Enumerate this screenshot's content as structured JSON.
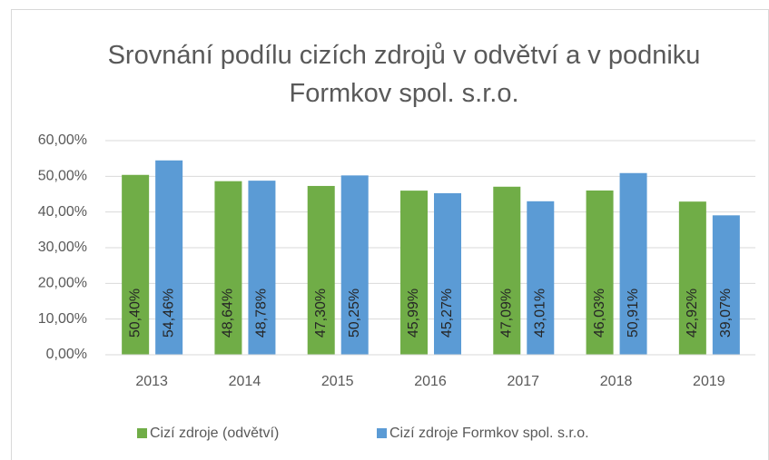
{
  "chart_data": {
    "type": "bar",
    "title": "Srovnání podílu cizích zdrojů v odvětví a v podniku Formkov spol. s.r.o.",
    "categories": [
      "2013",
      "2014",
      "2015",
      "2016",
      "2017",
      "2018",
      "2019"
    ],
    "series": [
      {
        "name": "Cizí zdroje (odvětví)",
        "color": "#70ad47",
        "values": [
          50.4,
          48.64,
          47.3,
          45.99,
          47.09,
          46.03,
          42.92
        ],
        "value_labels": [
          "50,40%",
          "48,64%",
          "47,30%",
          "45,99%",
          "47,09%",
          "46,03%",
          "42,92%"
        ]
      },
      {
        "name": "Cizí zdroje Formkov spol. s.r.o.",
        "color": "#5b9bd5",
        "values": [
          54.46,
          48.78,
          50.25,
          45.27,
          43.01,
          50.91,
          39.07
        ],
        "value_labels": [
          "54,46%",
          "48,78%",
          "50,25%",
          "45,27%",
          "43,01%",
          "50,91%",
          "39,07%"
        ]
      }
    ],
    "ylim": [
      0,
      60
    ],
    "yticks": [
      {
        "value": 0,
        "label": "0,00%"
      },
      {
        "value": 10,
        "label": "10,00%"
      },
      {
        "value": 20,
        "label": "20,00%"
      },
      {
        "value": 30,
        "label": "30,00%"
      },
      {
        "value": 40,
        "label": "40,00%"
      },
      {
        "value": 50,
        "label": "50,00%"
      },
      {
        "value": 60,
        "label": "60,00%"
      }
    ],
    "grid": true,
    "legend": "bottom"
  }
}
